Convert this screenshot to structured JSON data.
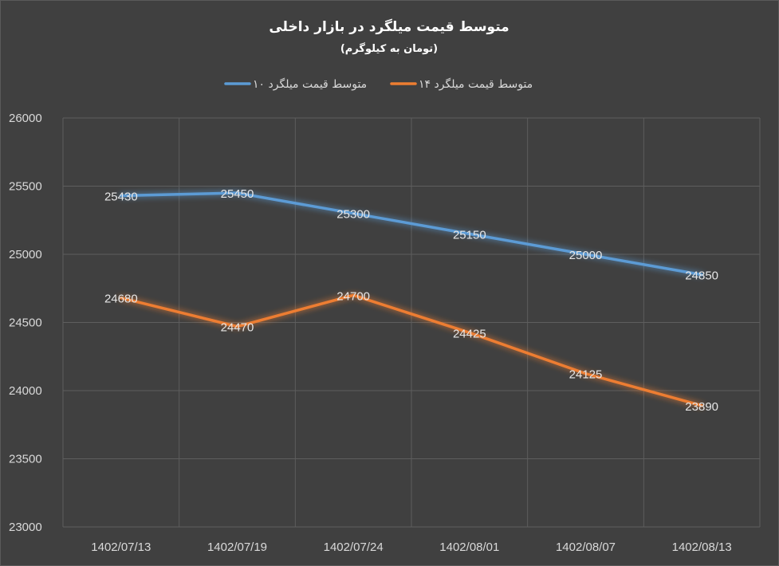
{
  "chart_data": {
    "type": "line",
    "title": "متوسط قیمت میلگرد در بازار داخلی",
    "subtitle": "(تومان به کیلوگرم)",
    "categories": [
      "1402/07/13",
      "1402/07/19",
      "1402/07/24",
      "1402/08/01",
      "1402/08/07",
      "1402/08/13"
    ],
    "series": [
      {
        "name": "متوسط قیمت میلگرد ۱۰",
        "color": "#5b9bd5",
        "values": [
          25430,
          25450,
          25300,
          25150,
          25000,
          24850
        ]
      },
      {
        "name": "متوسط قیمت میلگرد ۱۴",
        "color": "#ed7d31",
        "values": [
          24680,
          24470,
          24700,
          24425,
          24125,
          23890
        ]
      }
    ],
    "ylim": [
      23000,
      26000
    ],
    "yticks": [
      23000,
      23500,
      24000,
      24500,
      25000,
      25500,
      26000
    ],
    "grid": true,
    "legend_position": "top",
    "data_labels": true
  }
}
